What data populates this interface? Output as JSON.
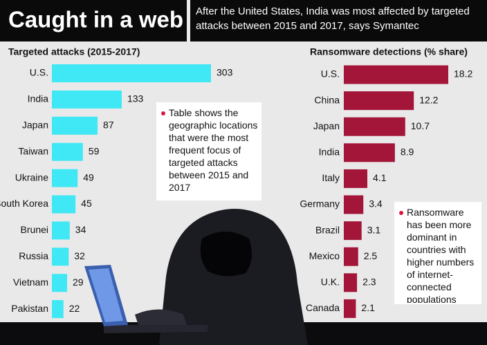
{
  "header": {
    "title": "Caught in a web",
    "subtitle": "After the United States, India was most affected by targeted attacks between 2015 and 2017, says Symantec"
  },
  "chart_data": [
    {
      "type": "bar",
      "title": "Targeted attacks (2015-2017)",
      "categories": [
        "U.S.",
        "India",
        "Japan",
        "Taiwan",
        "Ukraine",
        "South Korea",
        "Brunei",
        "Russia",
        "Vietnam",
        "Pakistan"
      ],
      "values": [
        303,
        133,
        87,
        59,
        49,
        45,
        34,
        32,
        29,
        22
      ],
      "color": "#3fe8f4",
      "annotation": "Table shows the geographic locations that were the most frequent focus of targeted attacks between 2015 and 2017"
    },
    {
      "type": "bar",
      "title": "Ransomware detections (% share)",
      "categories": [
        "U.S.",
        "China",
        "Japan",
        "India",
        "Italy",
        "Germany",
        "Brazil",
        "Mexico",
        "U.K.",
        "Canada"
      ],
      "values": [
        18.2,
        12.2,
        10.7,
        8.9,
        4.1,
        3.4,
        3.1,
        2.5,
        2.3,
        2.1
      ],
      "color": "#a3163a",
      "annotation": "Ransomware has been more dominant in countries with higher numbers of internet-connected populations"
    }
  ]
}
